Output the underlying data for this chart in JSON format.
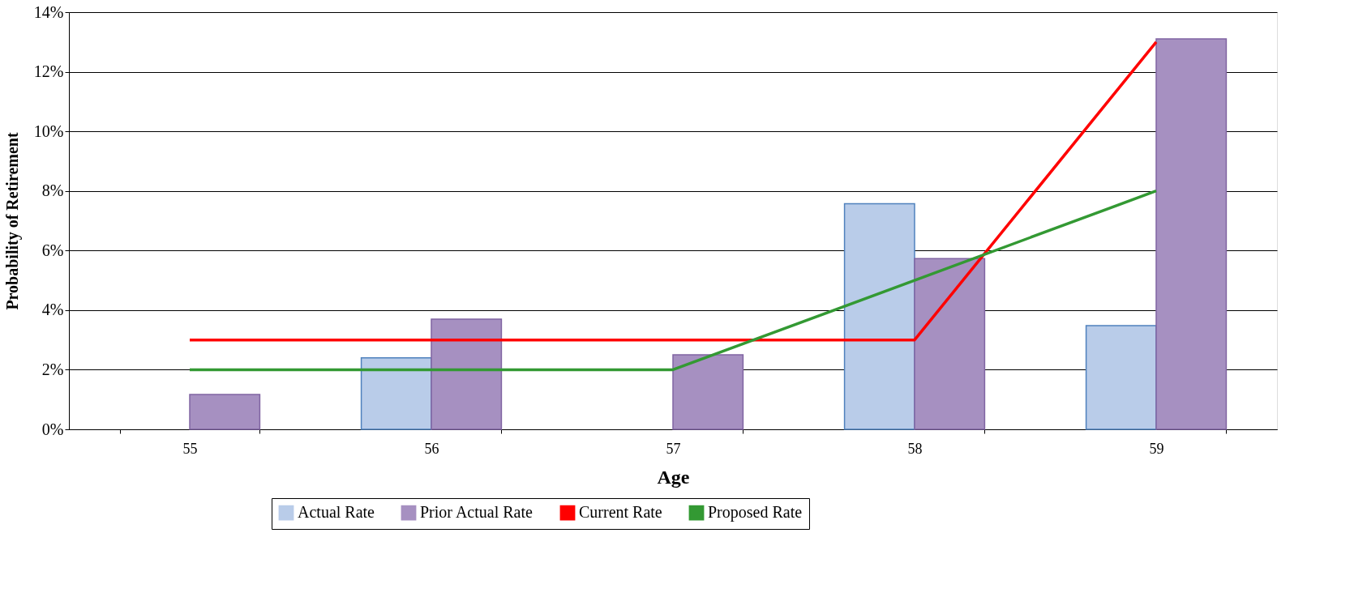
{
  "chart_data": {
    "type": "bar",
    "xlabel": "Age",
    "ylabel": "Probability of Retirement",
    "categories": [
      "55",
      "56",
      "57",
      "58",
      "59"
    ],
    "series": [
      {
        "name": "Actual Rate",
        "color": "#b9cce9",
        "values": [
          null,
          2.4,
          null,
          7.57,
          3.48
        ]
      },
      {
        "name": "Prior Actual Rate",
        "color": "#a690c1",
        "values": [
          1.17,
          3.7,
          2.5,
          5.73,
          13.1
        ]
      },
      {
        "name": "Current Rate",
        "type": "line",
        "color": "#ff0000",
        "values": [
          3,
          3,
          3,
          3,
          13
        ]
      },
      {
        "name": "Proposed Rate",
        "type": "line",
        "color": "#339933",
        "values": [
          2,
          2,
          2,
          5,
          8
        ]
      }
    ],
    "ylim": [
      0,
      14
    ],
    "yticks": [
      {
        "value": 0,
        "label": "0%"
      },
      {
        "value": 2,
        "label": "2%"
      },
      {
        "value": 4,
        "label": "4%"
      },
      {
        "value": 6,
        "label": "6%"
      },
      {
        "value": 8,
        "label": "8%"
      },
      {
        "value": 10,
        "label": "10%"
      },
      {
        "value": 12,
        "label": "12%"
      },
      {
        "value": 14,
        "label": "14%"
      }
    ],
    "grid": "y",
    "legend": "bottom",
    "marker": "none",
    "line_style": "solid"
  }
}
